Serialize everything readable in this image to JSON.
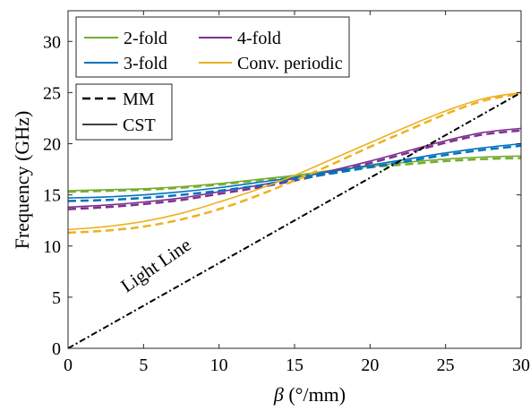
{
  "chart_data": {
    "type": "line",
    "title": "",
    "xlabel_symbol": "β",
    "xlabel_unit": " (°/mm)",
    "ylabel": "Frequency (GHz)",
    "xlim": [
      0,
      30
    ],
    "ylim": [
      0,
      33
    ],
    "xticks": [
      0,
      5,
      10,
      15,
      20,
      25,
      30
    ],
    "yticks": [
      0,
      5,
      10,
      15,
      20,
      25,
      30
    ],
    "grid": false,
    "legend_placement": "top-left",
    "annotation": "Light Line",
    "style_legend": [
      {
        "label": "MM",
        "dash": "dashed"
      },
      {
        "label": "CST",
        "dash": "solid"
      }
    ],
    "series": [
      {
        "name": "2-fold",
        "color": "#77AC30",
        "x": [
          0,
          2.5,
          5,
          7.5,
          10,
          12.5,
          15,
          17.5,
          20,
          22.5,
          25,
          27.5,
          30
        ],
        "cst": [
          15.4,
          15.5,
          15.6,
          15.8,
          16.1,
          16.5,
          16.9,
          17.4,
          17.8,
          18.2,
          18.5,
          18.7,
          18.8
        ],
        "mm": [
          15.3,
          15.4,
          15.5,
          15.7,
          16.0,
          16.4,
          16.8,
          17.3,
          17.7,
          18.0,
          18.3,
          18.5,
          18.6
        ]
      },
      {
        "name": "4-fold",
        "color": "#7E2F8E",
        "x": [
          0,
          2.5,
          5,
          7.5,
          10,
          12.5,
          15,
          17.5,
          20,
          22.5,
          25,
          27.5,
          30
        ],
        "cst": [
          13.8,
          14.0,
          14.3,
          14.7,
          15.3,
          15.9,
          16.6,
          17.4,
          18.3,
          19.3,
          20.3,
          21.1,
          21.5
        ],
        "mm": [
          13.6,
          13.8,
          14.1,
          14.5,
          15.1,
          15.7,
          16.4,
          17.2,
          18.1,
          19.1,
          20.1,
          20.9,
          21.3
        ]
      },
      {
        "name": "3-fold",
        "color": "#0072BD",
        "x": [
          0,
          2.5,
          5,
          7.5,
          10,
          12.5,
          15,
          17.5,
          20,
          22.5,
          25,
          27.5,
          30
        ],
        "cst": [
          14.7,
          14.8,
          15.0,
          15.3,
          15.7,
          16.2,
          16.7,
          17.3,
          17.9,
          18.5,
          19.1,
          19.6,
          20.0
        ],
        "mm": [
          14.4,
          14.5,
          14.7,
          15.0,
          15.4,
          15.9,
          16.5,
          17.1,
          17.7,
          18.3,
          18.9,
          19.4,
          19.8
        ]
      },
      {
        "name": "Conv. periodic",
        "color": "#EDB120",
        "x": [
          0,
          2.5,
          5,
          7.5,
          10,
          12.5,
          15,
          17.5,
          20,
          22.5,
          25,
          27.5,
          30
        ],
        "cst": [
          11.6,
          11.9,
          12.4,
          13.2,
          14.3,
          15.5,
          16.9,
          18.5,
          20.1,
          21.7,
          23.2,
          24.4,
          25.0
        ],
        "mm": [
          11.3,
          11.5,
          11.9,
          12.6,
          13.6,
          14.9,
          16.4,
          18.0,
          19.7,
          21.3,
          22.9,
          24.2,
          24.9
        ]
      }
    ],
    "light_line": {
      "x": [
        0,
        30
      ],
      "y": [
        0,
        25
      ],
      "color": "#000000"
    }
  }
}
